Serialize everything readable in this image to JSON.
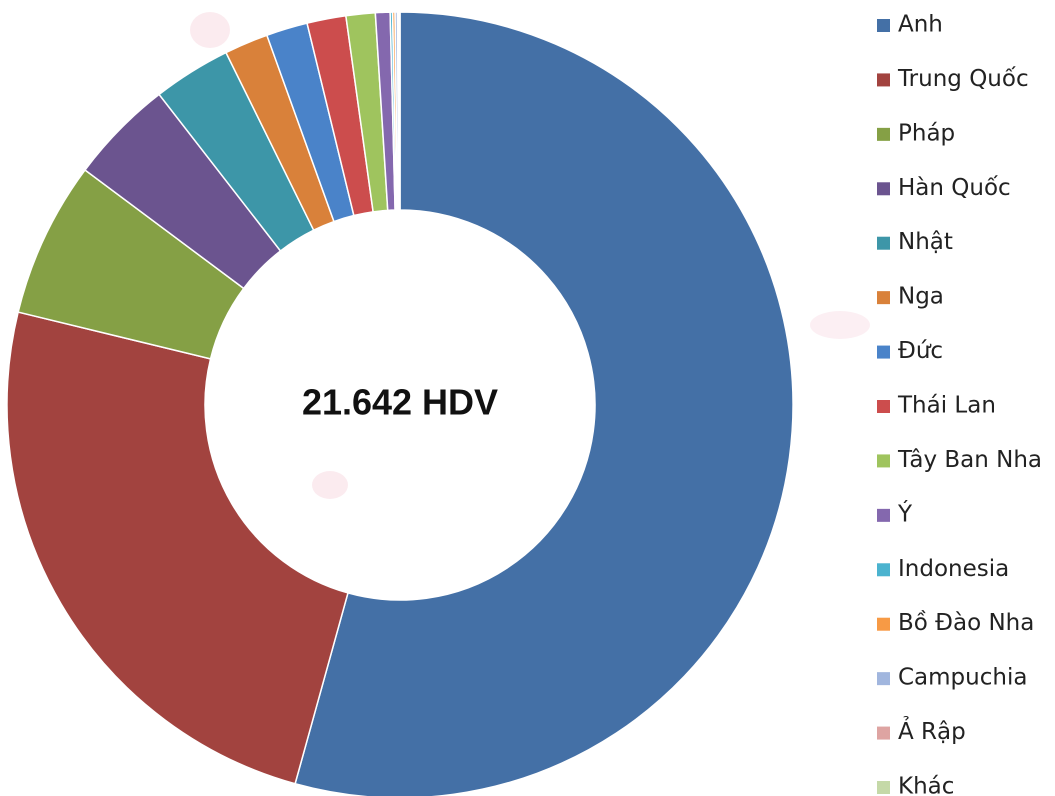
{
  "chart_data": {
    "type": "donut",
    "center_label": "21.642 HDV",
    "categories": [
      "Anh",
      "Trung Quốc",
      "Pháp",
      "Hàn Quốc",
      "Nhật",
      "Nga",
      "Đức",
      "Thái Lan",
      "Tây Ban Nha",
      "Ý",
      "Indonesia",
      "Bồ Đào Nha",
      "Campuchia",
      "Ả Rập",
      "Khác"
    ],
    "values": [
      54.3,
      24.5,
      6.4,
      4.3,
      3.2,
      1.8,
      1.7,
      1.6,
      1.2,
      0.6,
      0.1,
      0.1,
      0.1,
      0.05,
      0.05
    ],
    "colors": [
      "#4470a6",
      "#a2433f",
      "#85a045",
      "#6b548f",
      "#3d96a8",
      "#d9813a",
      "#4a83c9",
      "#cc4d4d",
      "#9fc45e",
      "#8468ae",
      "#4bb3cf",
      "#f79a45",
      "#a1b6de",
      "#dea4a2",
      "#c5d9a8"
    ],
    "legend": "right"
  }
}
